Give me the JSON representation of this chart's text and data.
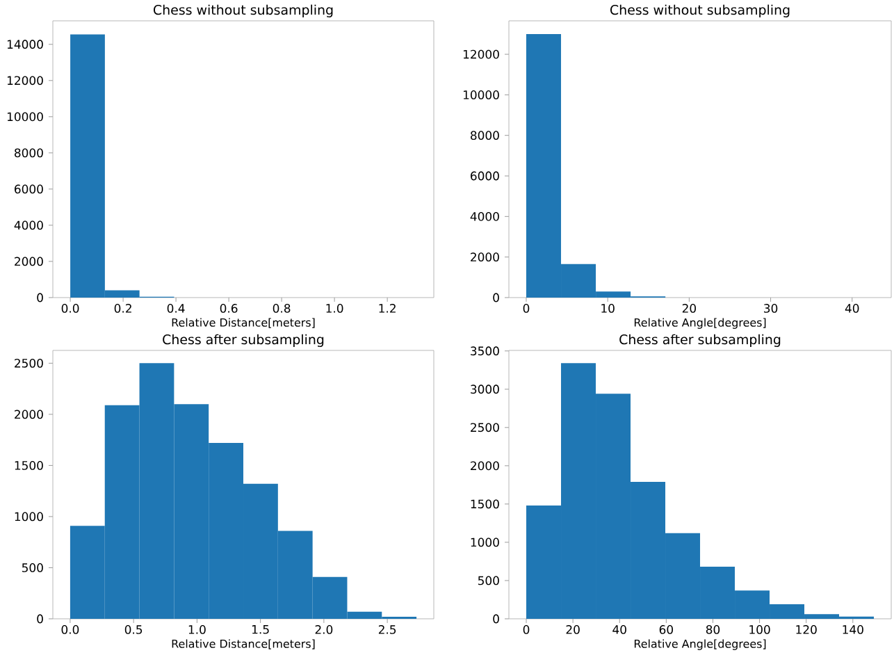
{
  "chart_data": [
    {
      "type": "histogram",
      "title": "Chess without subsampling",
      "xlabel": "Relative Distance[meters]",
      "color": "#1f77b4",
      "bins": [
        0,
        0.131,
        0.262,
        0.393,
        0.524,
        0.655,
        0.786,
        0.917,
        1.048,
        1.179,
        1.31
      ],
      "values": [
        14550,
        400,
        50,
        0,
        0,
        0,
        0,
        0,
        0,
        0
      ],
      "xlim": [
        -0.066,
        1.376
      ],
      "ylim": [
        0,
        15300
      ],
      "xticks": [
        {
          "value": 0,
          "label": "0.0"
        },
        {
          "value": 0.2,
          "label": "0.2"
        },
        {
          "value": 0.4,
          "label": "0.4"
        },
        {
          "value": 0.6,
          "label": "0.6"
        },
        {
          "value": 0.8,
          "label": "0.8"
        },
        {
          "value": 1.0,
          "label": "1.0"
        },
        {
          "value": 1.2,
          "label": "1.2"
        }
      ],
      "yticks": [
        0,
        2000,
        4000,
        6000,
        8000,
        10000,
        12000,
        14000
      ],
      "grid": false
    },
    {
      "type": "histogram",
      "title": "Chess without subsampling",
      "xlabel": "Relative Angle[degrees]",
      "color": "#1f77b4",
      "bins": [
        0,
        4.27,
        8.54,
        12.81,
        17.08,
        21.35,
        25.62,
        29.89,
        34.16,
        38.43,
        42.7
      ],
      "values": [
        13000,
        1650,
        300,
        60,
        0,
        0,
        0,
        0,
        0,
        0
      ],
      "xlim": [
        -2.13,
        44.8
      ],
      "ylim": [
        0,
        13650
      ],
      "xticks": [
        0,
        10,
        20,
        30,
        40
      ],
      "yticks": [
        0,
        2000,
        4000,
        6000,
        8000,
        10000,
        12000
      ],
      "grid": false
    },
    {
      "type": "histogram",
      "title": "Chess after subsampling",
      "xlabel": "Relative Distance[meters]",
      "color": "#1f77b4",
      "bins": [
        0,
        0.273,
        0.546,
        0.819,
        1.092,
        1.365,
        1.638,
        1.911,
        2.184,
        2.457,
        2.73
      ],
      "values": [
        910,
        2090,
        2500,
        2100,
        1720,
        1320,
        860,
        410,
        70,
        20
      ],
      "xlim": [
        -0.1365,
        2.8665
      ],
      "ylim": [
        0,
        2625
      ],
      "xticks": [
        {
          "value": 0,
          "label": "0.0"
        },
        {
          "value": 0.5,
          "label": "0.5"
        },
        {
          "value": 1.0,
          "label": "1.0"
        },
        {
          "value": 1.5,
          "label": "1.5"
        },
        {
          "value": 2.0,
          "label": "2.0"
        },
        {
          "value": 2.5,
          "label": "2.5"
        }
      ],
      "yticks": [
        0,
        500,
        1000,
        1500,
        2000,
        2500
      ],
      "grid": false
    },
    {
      "type": "histogram",
      "title": "Chess after subsampling",
      "xlabel": "Relative Angle[degrees]",
      "color": "#1f77b4",
      "bins": [
        0,
        14.9,
        29.8,
        44.7,
        59.6,
        74.5,
        89.4,
        104.3,
        119.2,
        134.1,
        149
      ],
      "values": [
        1480,
        3340,
        2940,
        1790,
        1120,
        680,
        370,
        190,
        60,
        30
      ],
      "xlim": [
        -7.45,
        156.45
      ],
      "ylim": [
        0,
        3507
      ],
      "xticks": [
        0,
        20,
        40,
        60,
        80,
        100,
        120,
        140
      ],
      "yticks": [
        0,
        500,
        1000,
        1500,
        2000,
        2500,
        3000,
        3500
      ],
      "grid": false
    }
  ]
}
